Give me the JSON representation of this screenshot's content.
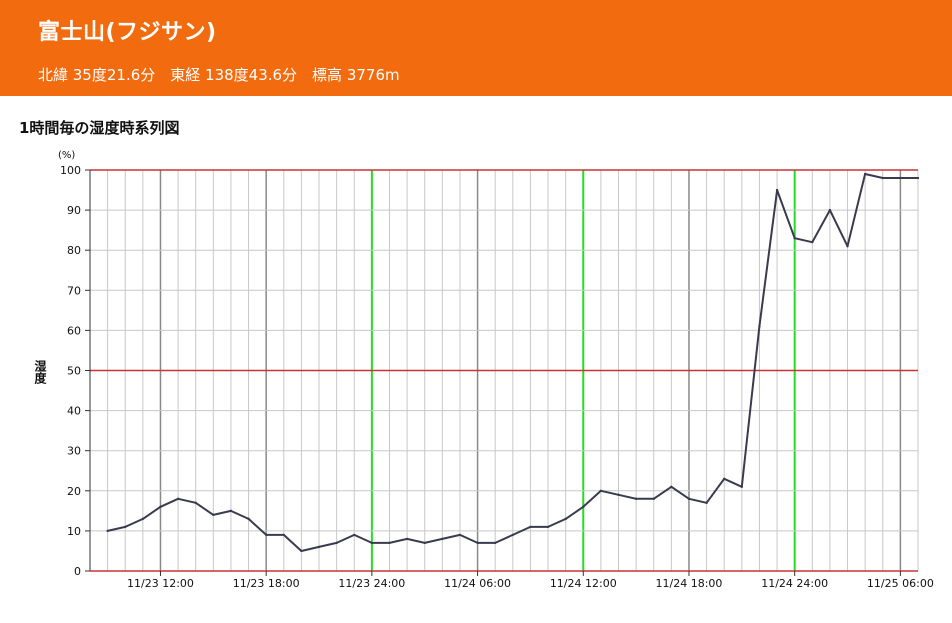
{
  "header": {
    "station_name": "富士山(フジサン)",
    "coordinates": "北緯 35度21.6分　東経 138度43.6分　標高 3776m"
  },
  "colors": {
    "header_bg": "#f26b0f",
    "line": "#3b3b4f",
    "day_boundary": "#22dd22",
    "six_hour_line": "#888888",
    "highlight_hline": "#cc3333",
    "grid": "#c8c8c8"
  },
  "chart_data": {
    "type": "line",
    "title": "1時間毎の湿度時系列図",
    "ylabel": "湿度",
    "yunit": "(%)",
    "ylim": [
      0,
      100
    ],
    "yticks": [
      0,
      10,
      20,
      30,
      40,
      50,
      60,
      70,
      80,
      90,
      100
    ],
    "xlim": [
      "11/23 08:00",
      "11/25 07:00"
    ],
    "xtick_labels": [
      "11/23 12:00",
      "11/23 18:00",
      "11/23 24:00",
      "11/24 06:00",
      "11/24 12:00",
      "11/24 18:00",
      "11/24 24:00",
      "11/25 06:00"
    ],
    "day_boundaries": [
      "11/23 24:00",
      "11/24 12:00",
      "11/24 24:00"
    ],
    "highlight_lines": [
      50,
      100
    ],
    "grid": true,
    "series": [
      {
        "x": [
          "11/23 09:00",
          "11/23 10:00",
          "11/23 11:00",
          "11/23 12:00",
          "11/23 13:00",
          "11/23 14:00",
          "11/23 15:00",
          "11/23 16:00",
          "11/23 17:00",
          "11/23 18:00",
          "11/23 19:00",
          "11/23 20:00",
          "11/23 21:00",
          "11/23 22:00",
          "11/23 23:00",
          "11/23 24:00",
          "11/24 01:00",
          "11/24 02:00",
          "11/24 03:00",
          "11/24 04:00",
          "11/24 05:00",
          "11/24 06:00",
          "11/24 07:00",
          "11/24 08:00",
          "11/24 09:00",
          "11/24 10:00",
          "11/24 11:00",
          "11/24 12:00",
          "11/24 13:00",
          "11/24 14:00",
          "11/24 15:00",
          "11/24 16:00",
          "11/24 17:00",
          "11/24 18:00",
          "11/24 19:00",
          "11/24 20:00",
          "11/24 21:00",
          "11/24 22:00",
          "11/24 23:00",
          "11/24 24:00",
          "11/25 01:00",
          "11/25 02:00",
          "11/25 03:00",
          "11/25 04:00",
          "11/25 05:00",
          "11/25 06:00",
          "11/25 07:00"
        ],
        "values": [
          10,
          11,
          13,
          16,
          18,
          17,
          14,
          15,
          13,
          9,
          9,
          5,
          6,
          7,
          9,
          7,
          7,
          8,
          7,
          8,
          9,
          7,
          7,
          9,
          11,
          11,
          13,
          16,
          20,
          19,
          18,
          18,
          21,
          18,
          17,
          23,
          21,
          61,
          95,
          83,
          82,
          90,
          81,
          99,
          98,
          98,
          98
        ]
      }
    ]
  }
}
